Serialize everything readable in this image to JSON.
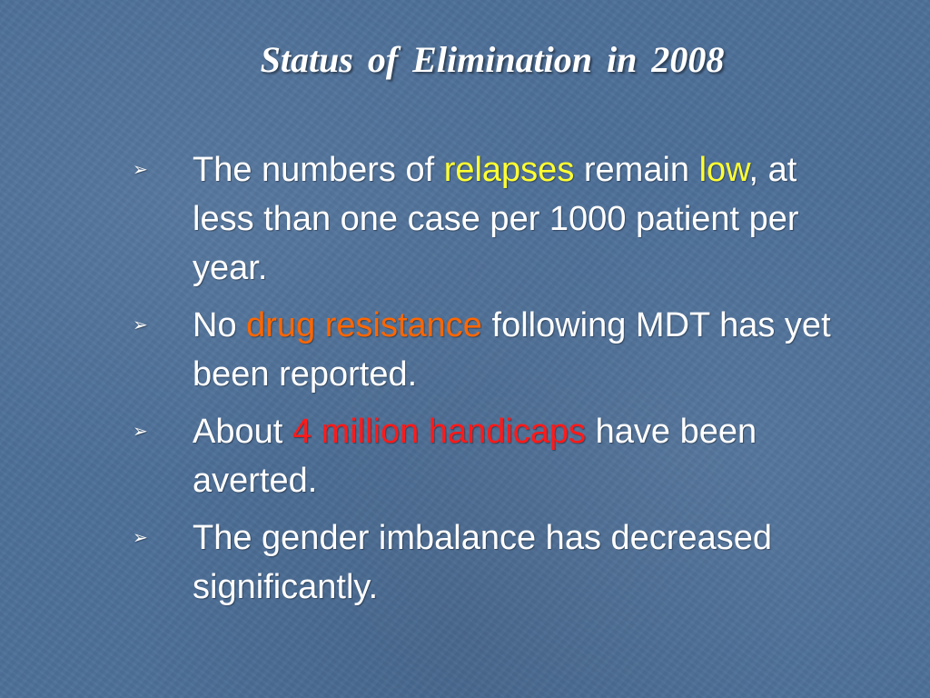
{
  "slide": {
    "title": "Status  of  Elimination  in 2008",
    "bullet_marker": "➢",
    "bullets": [
      {
        "t1": "The numbers of ",
        "h1": "relapses",
        "t2": " remain ",
        "h2": "low",
        "t3": ", at less than one case per 1000 patient per year."
      },
      {
        "t1": "No ",
        "h1": "drug resistance",
        "t2": " following MDT has yet been reported."
      },
      {
        "t1": "About ",
        "h1": "4 million handicaps",
        "t2": " have been averted."
      },
      {
        "t1": "The gender imbalance has decreased significantly."
      }
    ]
  },
  "colors": {
    "background": "#4d6f98",
    "text": "#ffffff",
    "highlight_yellow": "#ffff33",
    "highlight_orange": "#ff6600",
    "highlight_red": "#ff1a1a"
  }
}
